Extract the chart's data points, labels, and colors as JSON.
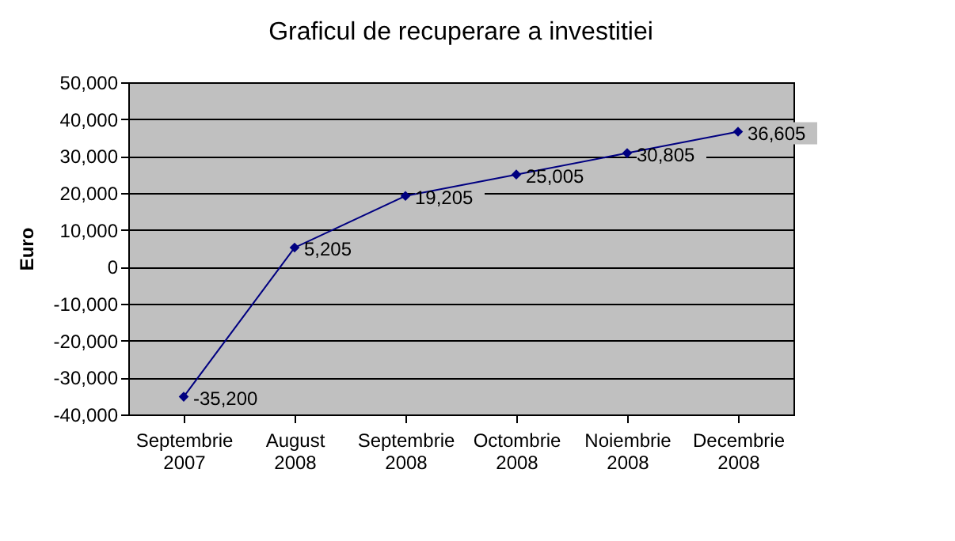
{
  "chart_data": {
    "type": "line",
    "title": "Graficul de recuperare a investitiei",
    "ylabel": "Euro",
    "categories": [
      "Septembrie 2007",
      "August 2008",
      "Septembrie 2008",
      "Octombrie 2008",
      "Noiembrie 2008",
      "Decembrie 2008"
    ],
    "series": [
      {
        "color": "#000080",
        "values": [
          -35200,
          5205,
          19205,
          25005,
          30805,
          36605
        ],
        "value_labels": [
          "-35,200",
          "5,205",
          "19,205",
          "25,005",
          "30,805",
          "36,605"
        ]
      }
    ],
    "ylim": [
      -40000,
      50000
    ],
    "yticks": [
      {
        "value": -40000,
        "label": "-40,000"
      },
      {
        "value": -30000,
        "label": "-30,000"
      },
      {
        "value": -20000,
        "label": "-20,000"
      },
      {
        "value": -10000,
        "label": "-10,000"
      },
      0,
      {
        "value": 10000,
        "label": "10,000"
      },
      {
        "value": 20000,
        "label": "20,000"
      },
      {
        "value": 30000,
        "label": "30,000"
      },
      {
        "value": 40000,
        "label": "40,000"
      },
      {
        "value": 50000,
        "label": "50,000"
      }
    ],
    "grid": "y",
    "legend": false,
    "marker": "diamond",
    "line_style": "solid"
  }
}
